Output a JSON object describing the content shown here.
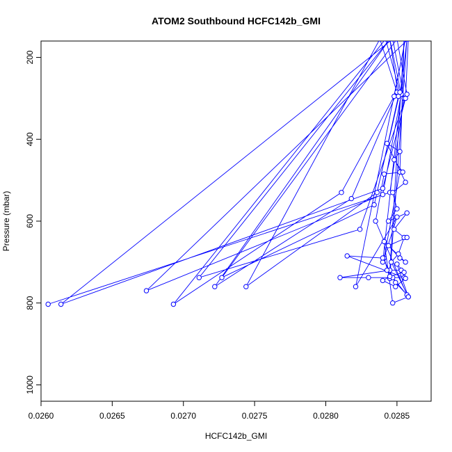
{
  "chart_data": {
    "type": "line",
    "title": "ATOM2 Southbound HCFC142b_GMI",
    "xlabel": "HCFC142b_GMI",
    "ylabel": "Pressure (mbar)",
    "xlim": [
      0.026,
      0.02874
    ],
    "ylim": [
      1040,
      160
    ],
    "y_reversed": true,
    "xticks": [
      "0.0260",
      "0.0265",
      "0.0270",
      "0.0275",
      "0.0280",
      "0.0285"
    ],
    "yticks": [
      "200",
      "400",
      "600",
      "800",
      "1000"
    ],
    "grid": false,
    "legend": "none",
    "series": [
      {
        "color": "#0000ff",
        "marker": "open-circle",
        "x": [
          0.02605,
          0.02845,
          0.02855,
          0.02847,
          0.02614,
          0.0284,
          0.02856,
          0.02858,
          0.02674,
          0.0284,
          0.02853,
          0.02845,
          0.02722,
          0.02818,
          0.0285,
          0.02838,
          0.02744,
          0.02836,
          0.02851,
          0.02845,
          0.02711,
          0.02824,
          0.02857,
          0.0285,
          0.02727,
          0.02834,
          0.02852,
          0.02842,
          0.02693,
          0.02811,
          0.02848,
          0.02856,
          0.02821,
          0.0285,
          0.0284,
          0.02857,
          0.02845,
          0.02841,
          0.02852,
          0.02855,
          0.02845,
          0.0281,
          0.0283,
          0.02847,
          0.02855,
          0.02815,
          0.0284,
          0.02849,
          0.02857,
          0.02835,
          0.02841,
          0.02854,
          0.02848,
          0.02852,
          0.02843,
          0.02856,
          0.02847,
          0.0285,
          0.02844,
          0.02857,
          0.02848,
          0.02855,
          0.02851,
          0.02846,
          0.02858,
          0.02843,
          0.02853,
          0.02856,
          0.02849,
          0.0284,
          0.02845,
          0.02855,
          0.0285,
          0.02858,
          0.02847,
          0.02841,
          0.02856,
          0.02852,
          0.02844,
          0.02857
        ],
        "y": [
          803,
          530,
          300,
          155,
          803,
          520,
          300,
          155,
          770,
          535,
          290,
          155,
          760,
          545,
          285,
          155,
          760,
          530,
          295,
          155,
          738,
          620,
          290,
          155,
          738,
          560,
          285,
          155,
          803,
          530,
          295,
          155,
          760,
          590,
          700,
          155,
          740,
          690,
          480,
          155,
          720,
          738,
          738,
          738,
          738,
          685,
          690,
          750,
          780,
          600,
          485,
          480,
          450,
          430,
          410,
          505,
          530,
          570,
          600,
          580,
          620,
          640,
          680,
          700,
          785,
          720,
          720,
          740,
          760,
          745,
          735,
          725,
          705,
          785,
          800,
          650,
          700,
          690,
          660,
          640
        ]
      }
    ]
  }
}
